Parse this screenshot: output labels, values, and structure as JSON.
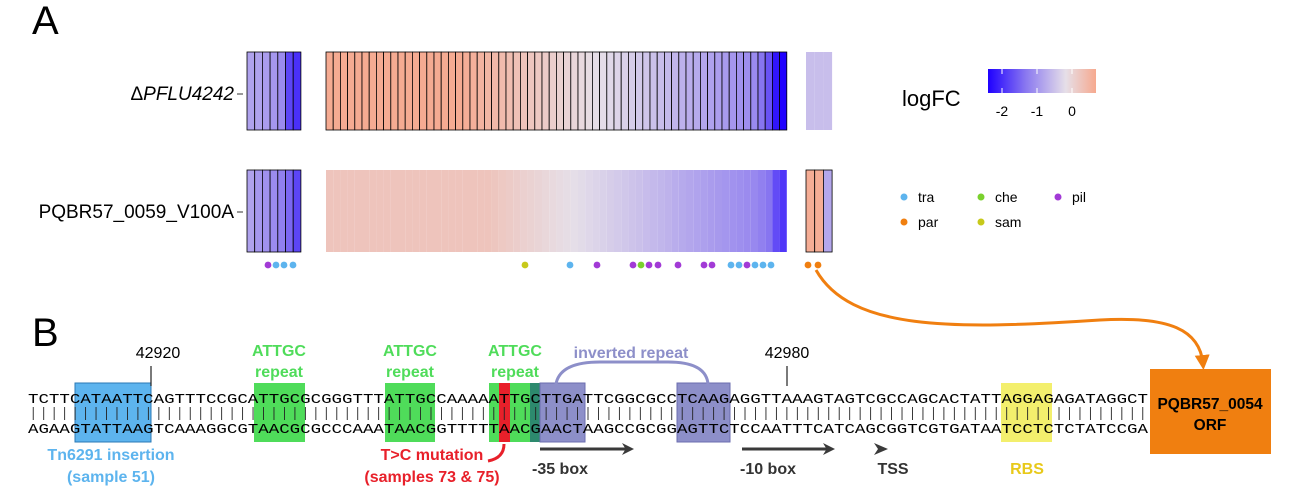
{
  "panel_a": {
    "label": "A",
    "rows": [
      {
        "label_prefix": "Δ",
        "label_italic": "PFLU4242",
        "italic": true
      },
      {
        "label": "PQBR57_0059_V100A",
        "italic": false
      }
    ],
    "legend": {
      "title": "logFC",
      "ticks": [
        "-2",
        "-1",
        "0"
      ],
      "gradient_colors": [
        "#1f00ff",
        "#8a78f0",
        "#e6dfe8",
        "#f6a98f"
      ]
    },
    "groups": [
      {
        "code": "tra",
        "color": "#5db4ee"
      },
      {
        "code": "par",
        "color": "#f07f10"
      },
      {
        "code": "che",
        "color": "#7ad12d"
      },
      {
        "code": "sam",
        "color": "#c7c91a"
      },
      {
        "code": "pil",
        "color": "#a23ad6"
      }
    ]
  },
  "panel_b": {
    "label": "B",
    "top_strand": "TCTTCATAATTCAGTTTCCGCATTGCGCGGGTTTATTGCCAAAAATTGCTTGATTCGGCGCCTCAAGAGGTTAAAGTAGTCGCCAGCACTATTAGGAGAGATAGGCT",
    "bottom_strand": "AGAAGTATTAAGTCAAAGGCGTAACGCGCCCAAATAACGGTTTTTAACGAACTAAGCCGCGGAGTTCTCCAATTTCATCAGCGGTCGTGATAATCCTCTCTATCCGA",
    "positions": [
      {
        "label": "42920"
      },
      {
        "label": "42980"
      }
    ],
    "labels": {
      "attgc": [
        "ATTGC",
        "repeat"
      ],
      "inverted": "inverted repeat",
      "tn": [
        "Tn6291 insertion",
        "(sample 51)"
      ],
      "mutation": [
        "T>C mutation",
        "(samples 73 & 75)"
      ],
      "box35": "-35 box",
      "box10": "-10 box",
      "tss": "TSS",
      "rbs": "RBS",
      "orf": [
        "PQBR57_0054",
        "ORF"
      ]
    },
    "colors": {
      "tn": "#5db4ee",
      "attgc": "#4fdc5a",
      "mutation": "#e8202a",
      "inverted": "#8d8fc9",
      "rbs": "#f3ef6d",
      "orf": "#f07f10",
      "arrow": "#3a3a3a"
    }
  }
}
